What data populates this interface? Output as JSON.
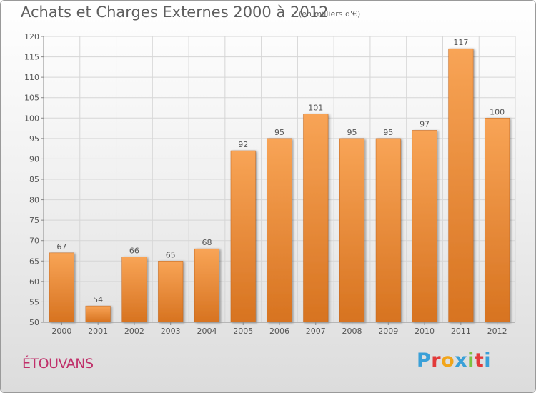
{
  "header": {
    "title": "Achats et Charges Externes 2000 à 2012",
    "subtitle": "(en milliers d'€)"
  },
  "footer": {
    "commune": "ÉTOUVANS",
    "logo": "Proxiti"
  },
  "colors": {
    "bar_top": "#f8a456",
    "bar_bottom": "#d77320",
    "bar_edge": "#c0641c",
    "grid": "#d6d6d6",
    "text": "#555555",
    "logo": [
      "#3aa0d8",
      "#e23a3a",
      "#f2a51a",
      "#3aa0d8",
      "#7cc242",
      "#e23a3a",
      "#3aa0d8"
    ]
  },
  "chart_data": {
    "type": "bar",
    "categories": [
      "2000",
      "2001",
      "2002",
      "2003",
      "2004",
      "2005",
      "2006",
      "2007",
      "2008",
      "2009",
      "2010",
      "2011",
      "2012"
    ],
    "values": [
      67,
      54,
      66,
      65,
      68,
      92,
      95,
      101,
      95,
      95,
      97,
      117,
      100
    ],
    "title": "Achats et Charges Externes 2000 à 2012",
    "subtitle": "(en milliers d'€)",
    "xlabel": "",
    "ylabel": "",
    "ylim": [
      50,
      120
    ],
    "yticks": [
      50,
      55,
      60,
      65,
      70,
      75,
      80,
      85,
      90,
      95,
      100,
      105,
      110,
      115,
      120
    ],
    "grid": true,
    "data_labels": true
  }
}
